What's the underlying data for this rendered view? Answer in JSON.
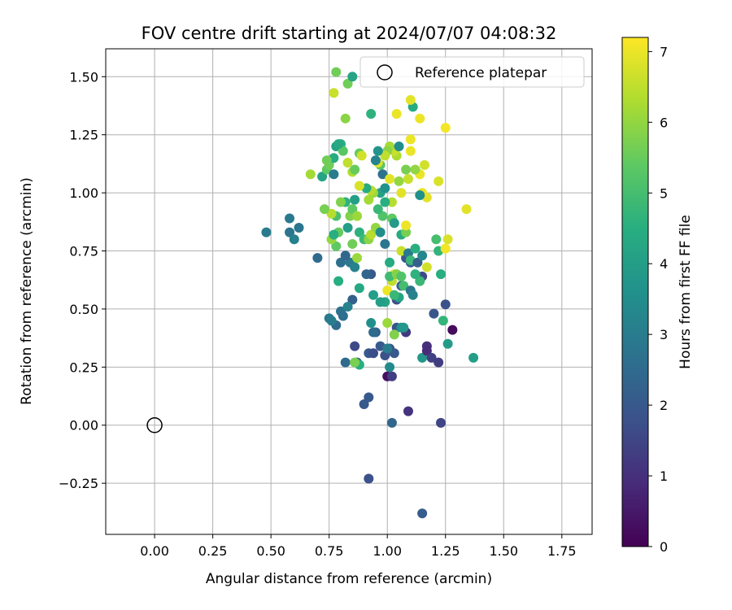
{
  "chart_data": {
    "type": "scatter",
    "title": "FOV centre drift starting at 2024/07/07 04:08:32",
    "xlabel": "Angular distance from reference (arcmin)",
    "ylabel": "Rotation from reference (arcmin)",
    "xlim": [
      -0.21,
      1.88
    ],
    "ylim": [
      -0.47,
      1.62
    ],
    "xticks": [
      0.0,
      0.25,
      0.5,
      0.75,
      1.0,
      1.25,
      1.5,
      1.75
    ],
    "xtick_labels": [
      "0.00",
      "0.25",
      "0.50",
      "0.75",
      "1.00",
      "1.25",
      "1.50",
      "1.75"
    ],
    "yticks": [
      -0.25,
      0.0,
      0.25,
      0.5,
      0.75,
      1.0,
      1.25,
      1.5
    ],
    "ytick_labels": [
      "−0.25",
      "0.00",
      "0.25",
      "0.50",
      "0.75",
      "1.00",
      "1.25",
      "1.50"
    ],
    "grid": true,
    "legend": {
      "placement": "top-right",
      "entries": [
        "Reference platepar"
      ]
    },
    "reference_point": {
      "x": 0.0,
      "y": 0.0,
      "label": "Reference platepar"
    },
    "colorbar": {
      "label": "Hours from first FF file",
      "colormap": "viridis",
      "range": [
        0,
        7.2
      ],
      "ticks": [
        0,
        1,
        2,
        3,
        4,
        5,
        6,
        7
      ],
      "tick_labels": [
        "0",
        "1",
        "2",
        "3",
        "4",
        "5",
        "6",
        "7"
      ]
    },
    "points": [
      {
        "x": 0.48,
        "y": 0.83,
        "c": 3.0
      },
      {
        "x": 0.58,
        "y": 0.89,
        "c": 2.9
      },
      {
        "x": 0.58,
        "y": 0.83,
        "c": 2.8
      },
      {
        "x": 0.6,
        "y": 0.8,
        "c": 3.1
      },
      {
        "x": 0.62,
        "y": 0.85,
        "c": 2.8
      },
      {
        "x": 0.7,
        "y": 0.72,
        "c": 2.5
      },
      {
        "x": 0.75,
        "y": 0.46,
        "c": 2.9
      },
      {
        "x": 0.78,
        "y": 0.43,
        "c": 2.5
      },
      {
        "x": 0.8,
        "y": 0.49,
        "c": 2.7
      },
      {
        "x": 0.81,
        "y": 0.47,
        "c": 2.6
      },
      {
        "x": 0.82,
        "y": 0.27,
        "c": 2.5
      },
      {
        "x": 0.86,
        "y": 0.34,
        "c": 1.6
      },
      {
        "x": 0.87,
        "y": 0.27,
        "c": 2.1
      },
      {
        "x": 0.88,
        "y": 0.26,
        "c": 4.5
      },
      {
        "x": 0.9,
        "y": 0.09,
        "c": 2.0
      },
      {
        "x": 0.92,
        "y": 0.12,
        "c": 2.0
      },
      {
        "x": 0.92,
        "y": -0.23,
        "c": 1.8
      },
      {
        "x": 0.92,
        "y": 0.31,
        "c": 2.0
      },
      {
        "x": 0.94,
        "y": 0.31,
        "c": 1.7
      },
      {
        "x": 0.95,
        "y": 0.4,
        "c": 2.2
      },
      {
        "x": 0.97,
        "y": 0.34,
        "c": 2.0
      },
      {
        "x": 0.99,
        "y": 0.3,
        "c": 1.8
      },
      {
        "x": 1.0,
        "y": 0.21,
        "c": 0.3
      },
      {
        "x": 1.01,
        "y": 0.25,
        "c": 3.4
      },
      {
        "x": 1.02,
        "y": 0.21,
        "c": 1.3
      },
      {
        "x": 1.02,
        "y": 0.01,
        "c": 2.4
      },
      {
        "x": 1.01,
        "y": 0.33,
        "c": 1.9
      },
      {
        "x": 1.03,
        "y": 0.31,
        "c": 2.0
      },
      {
        "x": 1.04,
        "y": 0.42,
        "c": 1.8
      },
      {
        "x": 1.06,
        "y": 0.42,
        "c": 3.6
      },
      {
        "x": 1.08,
        "y": 0.4,
        "c": 1.2
      },
      {
        "x": 1.09,
        "y": 0.06,
        "c": 1.1
      },
      {
        "x": 1.15,
        "y": -0.38,
        "c": 2.1
      },
      {
        "x": 1.15,
        "y": 0.29,
        "c": 3.8
      },
      {
        "x": 1.17,
        "y": 0.34,
        "c": 1.0
      },
      {
        "x": 1.17,
        "y": 0.32,
        "c": 0.9
      },
      {
        "x": 1.19,
        "y": 0.29,
        "c": 1.4
      },
      {
        "x": 1.22,
        "y": 0.27,
        "c": 1.3
      },
      {
        "x": 1.23,
        "y": 0.01,
        "c": 1.5
      },
      {
        "x": 1.25,
        "y": 0.52,
        "c": 1.8
      },
      {
        "x": 1.28,
        "y": 0.41,
        "c": 0.2
      },
      {
        "x": 1.26,
        "y": 0.35,
        "c": 3.9
      },
      {
        "x": 1.37,
        "y": 0.29,
        "c": 4.0
      },
      {
        "x": 1.24,
        "y": 0.45,
        "c": 4.7
      },
      {
        "x": 1.2,
        "y": 0.48,
        "c": 1.9
      },
      {
        "x": 1.23,
        "y": 0.65,
        "c": 4.5
      },
      {
        "x": 1.15,
        "y": 0.64,
        "c": 1.6
      },
      {
        "x": 1.14,
        "y": 0.62,
        "c": 4.8
      },
      {
        "x": 1.12,
        "y": 0.65,
        "c": 4.6
      },
      {
        "x": 1.1,
        "y": 0.7,
        "c": 2.2
      },
      {
        "x": 1.08,
        "y": 0.72,
        "c": 1.9
      },
      {
        "x": 1.06,
        "y": 0.6,
        "c": 2.1
      },
      {
        "x": 1.04,
        "y": 0.54,
        "c": 1.8
      },
      {
        "x": 1.05,
        "y": 0.55,
        "c": 4.2
      },
      {
        "x": 1.07,
        "y": 0.6,
        "c": 5.0
      },
      {
        "x": 1.02,
        "y": 0.62,
        "c": 6.5
      },
      {
        "x": 1.03,
        "y": 0.65,
        "c": 6.8
      },
      {
        "x": 1.0,
        "y": 0.58,
        "c": 7.0
      },
      {
        "x": 1.01,
        "y": 0.64,
        "c": 4.9
      },
      {
        "x": 0.99,
        "y": 0.53,
        "c": 4.2
      },
      {
        "x": 0.94,
        "y": 0.56,
        "c": 4.0
      },
      {
        "x": 0.93,
        "y": 0.65,
        "c": 2.0
      },
      {
        "x": 0.91,
        "y": 0.65,
        "c": 2.3
      },
      {
        "x": 0.88,
        "y": 0.59,
        "c": 4.3
      },
      {
        "x": 0.85,
        "y": 0.54,
        "c": 2.2
      },
      {
        "x": 0.83,
        "y": 0.51,
        "c": 3.2
      },
      {
        "x": 0.79,
        "y": 0.62,
        "c": 4.5
      },
      {
        "x": 0.8,
        "y": 0.7,
        "c": 2.6
      },
      {
        "x": 0.84,
        "y": 0.7,
        "c": 2.9
      },
      {
        "x": 0.86,
        "y": 0.68,
        "c": 3.2
      },
      {
        "x": 0.82,
        "y": 0.73,
        "c": 2.4
      },
      {
        "x": 0.78,
        "y": 0.77,
        "c": 5.4
      },
      {
        "x": 0.76,
        "y": 0.8,
        "c": 6.0
      },
      {
        "x": 0.79,
        "y": 0.83,
        "c": 5.5
      },
      {
        "x": 0.77,
        "y": 0.82,
        "c": 4.5
      },
      {
        "x": 0.83,
        "y": 0.85,
        "c": 4.0
      },
      {
        "x": 0.85,
        "y": 0.78,
        "c": 5.6
      },
      {
        "x": 0.87,
        "y": 0.72,
        "c": 6.1
      },
      {
        "x": 0.88,
        "y": 0.83,
        "c": 4.6
      },
      {
        "x": 0.9,
        "y": 0.8,
        "c": 4.9
      },
      {
        "x": 0.92,
        "y": 0.8,
        "c": 5.9
      },
      {
        "x": 0.93,
        "y": 0.82,
        "c": 6.4
      },
      {
        "x": 0.95,
        "y": 0.85,
        "c": 6.0
      },
      {
        "x": 0.97,
        "y": 0.83,
        "c": 3.5
      },
      {
        "x": 0.99,
        "y": 0.78,
        "c": 2.8
      },
      {
        "x": 1.02,
        "y": 0.89,
        "c": 5.4
      },
      {
        "x": 1.03,
        "y": 0.87,
        "c": 3.9
      },
      {
        "x": 1.06,
        "y": 0.75,
        "c": 6.6
      },
      {
        "x": 1.06,
        "y": 0.82,
        "c": 4.4
      },
      {
        "x": 1.08,
        "y": 0.83,
        "c": 5.7
      },
      {
        "x": 1.08,
        "y": 0.86,
        "c": 7.0
      },
      {
        "x": 1.09,
        "y": 0.74,
        "c": 2.9
      },
      {
        "x": 1.1,
        "y": 0.71,
        "c": 4.8
      },
      {
        "x": 1.12,
        "y": 0.76,
        "c": 4.5
      },
      {
        "x": 1.13,
        "y": 0.7,
        "c": 2.2
      },
      {
        "x": 1.15,
        "y": 0.73,
        "c": 3.3
      },
      {
        "x": 1.17,
        "y": 0.68,
        "c": 6.7
      },
      {
        "x": 1.22,
        "y": 0.75,
        "c": 4.7
      },
      {
        "x": 1.21,
        "y": 0.8,
        "c": 5.0
      },
      {
        "x": 1.25,
        "y": 0.76,
        "c": 7.1
      },
      {
        "x": 1.26,
        "y": 0.8,
        "c": 6.8
      },
      {
        "x": 1.34,
        "y": 0.93,
        "c": 6.9
      },
      {
        "x": 1.22,
        "y": 1.05,
        "c": 6.8
      },
      {
        "x": 1.17,
        "y": 0.98,
        "c": 6.9
      },
      {
        "x": 1.15,
        "y": 1.0,
        "c": 7.0
      },
      {
        "x": 1.14,
        "y": 0.99,
        "c": 3.6
      },
      {
        "x": 1.16,
        "y": 1.12,
        "c": 6.7
      },
      {
        "x": 1.14,
        "y": 1.08,
        "c": 7.0
      },
      {
        "x": 1.12,
        "y": 1.1,
        "c": 6.0
      },
      {
        "x": 1.1,
        "y": 1.18,
        "c": 7.0
      },
      {
        "x": 1.09,
        "y": 1.06,
        "c": 6.6
      },
      {
        "x": 1.08,
        "y": 1.1,
        "c": 5.7
      },
      {
        "x": 1.06,
        "y": 1.0,
        "c": 6.9
      },
      {
        "x": 1.05,
        "y": 1.05,
        "c": 6.0
      },
      {
        "x": 1.04,
        "y": 1.16,
        "c": 6.3
      },
      {
        "x": 1.03,
        "y": 1.18,
        "c": 6.6
      },
      {
        "x": 1.01,
        "y": 1.2,
        "c": 6.2
      },
      {
        "x": 1.0,
        "y": 1.18,
        "c": 5.9
      },
      {
        "x": 0.99,
        "y": 1.16,
        "c": 6.5
      },
      {
        "x": 0.97,
        "y": 1.12,
        "c": 5.3
      },
      {
        "x": 0.96,
        "y": 1.13,
        "c": 6.8
      },
      {
        "x": 0.95,
        "y": 1.14,
        "c": 3.2
      },
      {
        "x": 0.96,
        "y": 1.18,
        "c": 3.7
      },
      {
        "x": 0.98,
        "y": 1.08,
        "c": 2.7
      },
      {
        "x": 0.97,
        "y": 1.0,
        "c": 4.1
      },
      {
        "x": 0.99,
        "y": 1.02,
        "c": 3.6
      },
      {
        "x": 1.01,
        "y": 1.06,
        "c": 6.9
      },
      {
        "x": 1.02,
        "y": 0.96,
        "c": 6.4
      },
      {
        "x": 0.99,
        "y": 0.96,
        "c": 4.5
      },
      {
        "x": 0.98,
        "y": 0.9,
        "c": 5.2
      },
      {
        "x": 0.96,
        "y": 0.93,
        "c": 4.8
      },
      {
        "x": 0.94,
        "y": 1.0,
        "c": 6.1
      },
      {
        "x": 0.92,
        "y": 0.97,
        "c": 6.2
      },
      {
        "x": 0.93,
        "y": 1.01,
        "c": 6.4
      },
      {
        "x": 0.91,
        "y": 1.02,
        "c": 4.4
      },
      {
        "x": 0.88,
        "y": 1.03,
        "c": 6.8
      },
      {
        "x": 0.86,
        "y": 0.97,
        "c": 4.0
      },
      {
        "x": 0.84,
        "y": 0.9,
        "c": 5.8
      },
      {
        "x": 0.85,
        "y": 0.93,
        "c": 5.4
      },
      {
        "x": 0.87,
        "y": 0.9,
        "c": 6.1
      },
      {
        "x": 0.82,
        "y": 0.96,
        "c": 4.6
      },
      {
        "x": 0.8,
        "y": 0.96,
        "c": 5.8
      },
      {
        "x": 0.78,
        "y": 0.9,
        "c": 5.1
      },
      {
        "x": 0.76,
        "y": 0.91,
        "c": 6.4
      },
      {
        "x": 0.73,
        "y": 0.93,
        "c": 5.7
      },
      {
        "x": 0.72,
        "y": 1.07,
        "c": 4.2
      },
      {
        "x": 0.74,
        "y": 1.1,
        "c": 5.4
      },
      {
        "x": 0.75,
        "y": 1.12,
        "c": 5.6
      },
      {
        "x": 0.77,
        "y": 1.15,
        "c": 4.4
      },
      {
        "x": 0.78,
        "y": 1.2,
        "c": 4.1
      },
      {
        "x": 0.8,
        "y": 1.21,
        "c": 4.5
      },
      {
        "x": 0.81,
        "y": 1.18,
        "c": 5.3
      },
      {
        "x": 0.83,
        "y": 1.13,
        "c": 6.5
      },
      {
        "x": 0.85,
        "y": 1.09,
        "c": 6.3
      },
      {
        "x": 0.86,
        "y": 1.1,
        "c": 5.5
      },
      {
        "x": 0.88,
        "y": 1.17,
        "c": 5.5
      },
      {
        "x": 0.89,
        "y": 1.16,
        "c": 6.7
      },
      {
        "x": 0.74,
        "y": 1.14,
        "c": 5.6
      },
      {
        "x": 0.77,
        "y": 1.08,
        "c": 3.0
      },
      {
        "x": 0.67,
        "y": 1.08,
        "c": 6.2
      },
      {
        "x": 0.79,
        "y": 1.21,
        "c": 4.3
      },
      {
        "x": 0.82,
        "y": 1.32,
        "c": 5.9
      },
      {
        "x": 0.93,
        "y": 1.34,
        "c": 4.6
      },
      {
        "x": 1.11,
        "y": 1.37,
        "c": 4.4
      },
      {
        "x": 1.1,
        "y": 1.4,
        "c": 6.9
      },
      {
        "x": 1.14,
        "y": 1.32,
        "c": 7.0
      },
      {
        "x": 1.1,
        "y": 1.23,
        "c": 7.0
      },
      {
        "x": 1.25,
        "y": 1.28,
        "c": 7.1
      },
      {
        "x": 1.04,
        "y": 1.34,
        "c": 7.0
      },
      {
        "x": 0.77,
        "y": 1.43,
        "c": 6.6
      },
      {
        "x": 0.78,
        "y": 1.52,
        "c": 5.6
      },
      {
        "x": 0.83,
        "y": 1.47,
        "c": 5.6
      },
      {
        "x": 0.85,
        "y": 1.5,
        "c": 4.2
      },
      {
        "x": 1.05,
        "y": 1.2,
        "c": 3.5
      },
      {
        "x": 1.01,
        "y": 0.7,
        "c": 4.4
      },
      {
        "x": 1.04,
        "y": 0.65,
        "c": 5.8
      },
      {
        "x": 1.06,
        "y": 0.64,
        "c": 5.2
      },
      {
        "x": 1.03,
        "y": 0.56,
        "c": 4.8
      },
      {
        "x": 1.1,
        "y": 0.58,
        "c": 2.8
      },
      {
        "x": 1.11,
        "y": 0.56,
        "c": 3.2
      },
      {
        "x": 0.97,
        "y": 0.53,
        "c": 4.0
      },
      {
        "x": 0.93,
        "y": 0.44,
        "c": 3.5
      },
      {
        "x": 1.0,
        "y": 0.44,
        "c": 6.1
      },
      {
        "x": 1.03,
        "y": 0.39,
        "c": 5.8
      },
      {
        "x": 1.07,
        "y": 0.42,
        "c": 3.8
      },
      {
        "x": 0.76,
        "y": 0.45,
        "c": 3.0
      },
      {
        "x": 0.94,
        "y": 0.4,
        "c": 2.5
      },
      {
        "x": 0.86,
        "y": 0.27,
        "c": 5.7
      },
      {
        "x": 1.0,
        "y": 0.33,
        "c": 3.0
      }
    ]
  }
}
